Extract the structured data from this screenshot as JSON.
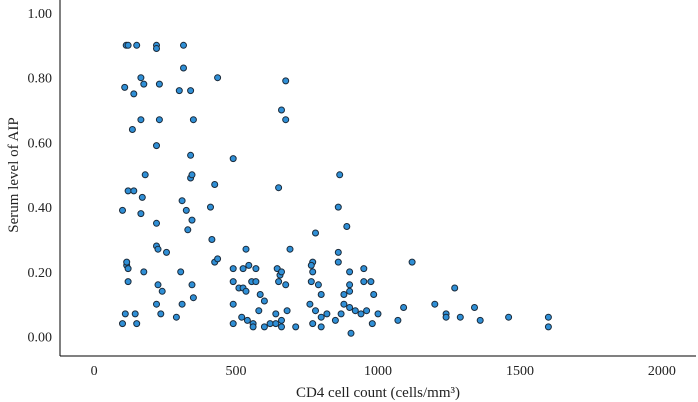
{
  "chart_data": {
    "type": "scatter",
    "title": "",
    "xlabel": "CD4 cell count (cells/mm³)",
    "ylabel": "Serum level of AIP",
    "xlim": [
      -120,
      2120
    ],
    "ylim": [
      -0.06,
      1.04
    ],
    "x_ticks": [
      "0",
      "500",
      "1000",
      "1500",
      "2000"
    ],
    "x_tick_values": [
      0,
      500,
      1000,
      1500,
      2000
    ],
    "y_ticks": [
      "0.00",
      "0.20",
      "0.40",
      "0.60",
      "0.80",
      "1.00"
    ],
    "y_tick_values": [
      0,
      0.2,
      0.4,
      0.6,
      0.8,
      1.0
    ],
    "grid": false,
    "point_color": "#2f8fd6",
    "series": [
      {
        "points": [
          [
            113,
            0.9
          ],
          [
            120,
            0.9
          ],
          [
            150,
            0.9
          ],
          [
            220,
            0.9
          ],
          [
            220,
            0.89
          ],
          [
            315,
            0.9
          ],
          [
            108,
            0.77
          ],
          [
            165,
            0.8
          ],
          [
            175,
            0.78
          ],
          [
            230,
            0.78
          ],
          [
            300,
            0.76
          ],
          [
            315,
            0.83
          ],
          [
            340,
            0.76
          ],
          [
            435,
            0.8
          ],
          [
            675,
            0.79
          ],
          [
            140,
            0.75
          ],
          [
            135,
            0.64
          ],
          [
            165,
            0.67
          ],
          [
            230,
            0.67
          ],
          [
            350,
            0.67
          ],
          [
            660,
            0.7
          ],
          [
            675,
            0.67
          ],
          [
            220,
            0.59
          ],
          [
            340,
            0.56
          ],
          [
            490,
            0.55
          ],
          [
            180,
            0.5
          ],
          [
            340,
            0.49
          ],
          [
            345,
            0.5
          ],
          [
            120,
            0.45
          ],
          [
            140,
            0.45
          ],
          [
            170,
            0.43
          ],
          [
            310,
            0.42
          ],
          [
            425,
            0.47
          ],
          [
            650,
            0.46
          ],
          [
            865,
            0.5
          ],
          [
            100,
            0.39
          ],
          [
            165,
            0.38
          ],
          [
            325,
            0.39
          ],
          [
            410,
            0.4
          ],
          [
            860,
            0.4
          ],
          [
            220,
            0.35
          ],
          [
            330,
            0.33
          ],
          [
            345,
            0.36
          ],
          [
            220,
            0.28
          ],
          [
            225,
            0.27
          ],
          [
            255,
            0.26
          ],
          [
            415,
            0.3
          ],
          [
            890,
            0.34
          ],
          [
            115,
            0.22
          ],
          [
            115,
            0.23
          ],
          [
            120,
            0.21
          ],
          [
            425,
            0.23
          ],
          [
            435,
            0.24
          ],
          [
            535,
            0.27
          ],
          [
            690,
            0.27
          ],
          [
            770,
            0.23
          ],
          [
            780,
            0.32
          ],
          [
            860,
            0.26
          ],
          [
            1120,
            0.23
          ],
          [
            120,
            0.17
          ],
          [
            175,
            0.2
          ],
          [
            225,
            0.16
          ],
          [
            240,
            0.14
          ],
          [
            305,
            0.2
          ],
          [
            345,
            0.16
          ],
          [
            350,
            0.12
          ],
          [
            490,
            0.21
          ],
          [
            525,
            0.21
          ],
          [
            545,
            0.22
          ],
          [
            570,
            0.21
          ],
          [
            645,
            0.21
          ],
          [
            655,
            0.19
          ],
          [
            660,
            0.2
          ],
          [
            765,
            0.22
          ],
          [
            770,
            0.2
          ],
          [
            860,
            0.23
          ],
          [
            900,
            0.2
          ],
          [
            950,
            0.21
          ],
          [
            975,
            0.17
          ],
          [
            490,
            0.17
          ],
          [
            510,
            0.15
          ],
          [
            525,
            0.15
          ],
          [
            535,
            0.14
          ],
          [
            555,
            0.17
          ],
          [
            570,
            0.17
          ],
          [
            585,
            0.13
          ],
          [
            600,
            0.11
          ],
          [
            650,
            0.17
          ],
          [
            675,
            0.16
          ],
          [
            765,
            0.17
          ],
          [
            790,
            0.16
          ],
          [
            800,
            0.13
          ],
          [
            880,
            0.13
          ],
          [
            900,
            0.16
          ],
          [
            900,
            0.14
          ],
          [
            950,
            0.17
          ],
          [
            985,
            0.13
          ],
          [
            1270,
            0.15
          ],
          [
            110,
            0.07
          ],
          [
            145,
            0.07
          ],
          [
            220,
            0.1
          ],
          [
            235,
            0.07
          ],
          [
            290,
            0.06
          ],
          [
            310,
            0.1
          ],
          [
            490,
            0.1
          ],
          [
            520,
            0.06
          ],
          [
            540,
            0.05
          ],
          [
            560,
            0.04
          ],
          [
            580,
            0.08
          ],
          [
            620,
            0.04
          ],
          [
            640,
            0.07
          ],
          [
            660,
            0.05
          ],
          [
            680,
            0.08
          ],
          [
            760,
            0.1
          ],
          [
            780,
            0.08
          ],
          [
            800,
            0.06
          ],
          [
            820,
            0.07
          ],
          [
            870,
            0.07
          ],
          [
            880,
            0.1
          ],
          [
            900,
            0.09
          ],
          [
            920,
            0.08
          ],
          [
            940,
            0.07
          ],
          [
            960,
            0.08
          ],
          [
            1000,
            0.07
          ],
          [
            1090,
            0.09
          ],
          [
            1200,
            0.1
          ],
          [
            1240,
            0.07
          ],
          [
            1290,
            0.06
          ],
          [
            1340,
            0.09
          ],
          [
            100,
            0.04
          ],
          [
            150,
            0.04
          ],
          [
            490,
            0.04
          ],
          [
            560,
            0.03
          ],
          [
            600,
            0.03
          ],
          [
            640,
            0.04
          ],
          [
            660,
            0.03
          ],
          [
            710,
            0.03
          ],
          [
            770,
            0.04
          ],
          [
            800,
            0.03
          ],
          [
            850,
            0.05
          ],
          [
            905,
            0.01
          ],
          [
            980,
            0.04
          ],
          [
            1070,
            0.05
          ],
          [
            1240,
            0.06
          ],
          [
            1360,
            0.05
          ],
          [
            1460,
            0.06
          ],
          [
            1600,
            0.03
          ],
          [
            1600,
            0.06
          ]
        ]
      }
    ]
  }
}
